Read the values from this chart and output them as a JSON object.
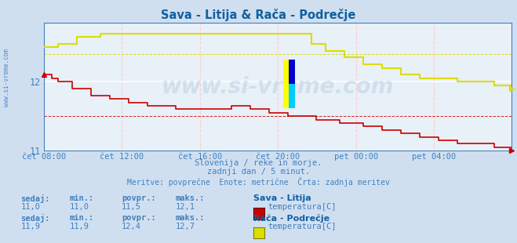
{
  "title": "Sava - Litija & Rača - Podrečje",
  "bg_color": "#d0dff0",
  "plot_bg_color": "#e8f0f8",
  "grid_color_major": "#ffffff",
  "grid_color_minor": "#ffcccc",
  "title_color": "#1060a0",
  "axis_label_color": "#4080c0",
  "text_color": "#4080c0",
  "subtitle1": "Slovenija / reke in morje.",
  "subtitle2": "zadnji dan / 5 minut.",
  "subtitle3": "Meritve: povprečne  Enote: metrične  Črta: zadnja meritev",
  "watermark": "www.si-vreme.com",
  "x_labels": [
    "čet 08:00",
    "čet 12:00",
    "čet 16:00",
    "čet 20:00",
    "pet 00:00",
    "pet 04:00"
  ],
  "x_ticks_norm": [
    0.0,
    0.1667,
    0.3333,
    0.5,
    0.6667,
    0.8333
  ],
  "ylim": [
    11.0,
    12.85
  ],
  "yticks": [
    11,
    12
  ],
  "sava_color": "#cc0000",
  "raca_color": "#dddd00",
  "sava_avg": 11.5,
  "raca_avg": 12.4,
  "sava_sedaj": "11,0",
  "sava_min": "11,0",
  "sava_povpr": "11,5",
  "sava_maks": "12,1",
  "raca_sedaj": "11,9",
  "raca_min": "11,9",
  "raca_povpr": "12,4",
  "raca_maks": "12,7",
  "legend_label1": "temperatura[C]",
  "legend_label2": "temperatura[C]",
  "legend_station1": "Sava - Litija",
  "legend_station2": "Rača - Podrečje",
  "sava_x": [
    0.0,
    0.015,
    0.03,
    0.06,
    0.1,
    0.14,
    0.18,
    0.22,
    0.28,
    0.34,
    0.4,
    0.44,
    0.48,
    0.52,
    0.58,
    0.63,
    0.68,
    0.72,
    0.76,
    0.8,
    0.84,
    0.88,
    0.92,
    0.96,
    1.0
  ],
  "sava_y": [
    12.1,
    12.05,
    12.0,
    11.9,
    11.8,
    11.75,
    11.7,
    11.65,
    11.6,
    11.6,
    11.65,
    11.6,
    11.55,
    11.5,
    11.45,
    11.4,
    11.35,
    11.3,
    11.25,
    11.2,
    11.15,
    11.1,
    11.1,
    11.05,
    11.0
  ],
  "raca_x": [
    0.0,
    0.03,
    0.07,
    0.12,
    0.17,
    0.22,
    0.27,
    0.32,
    0.5,
    0.57,
    0.6,
    0.64,
    0.68,
    0.72,
    0.76,
    0.8,
    0.84,
    0.88,
    0.92,
    0.96,
    1.0
  ],
  "raca_y": [
    12.5,
    12.55,
    12.65,
    12.7,
    12.7,
    12.7,
    12.7,
    12.7,
    12.7,
    12.55,
    12.45,
    12.35,
    12.25,
    12.2,
    12.1,
    12.05,
    12.05,
    12.0,
    12.0,
    11.95,
    11.9
  ]
}
